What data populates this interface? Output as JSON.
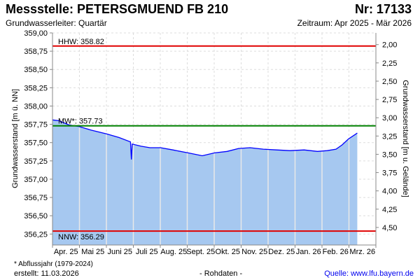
{
  "header": {
    "title": "Messstelle: PETERSGMUEND FB 210",
    "number": "Nr: 17133",
    "aquifer": "Grundwasserleiter: Quartär",
    "period": "Zeitraum: Apr 2025 - Mär 2026"
  },
  "footer": {
    "note": "* Abflussjahr (1979-2024)",
    "created": "erstellt:  11.03.2026",
    "raw": "- Rohdaten -",
    "source": "Quelle: www.lfu.bayern.de"
  },
  "chart_data": {
    "type": "area",
    "title": "Messstelle: PETERSGMUEND FB 210",
    "ylabel": "Grundwasserstand [m ü. NN]",
    "y2label": "Grundwasserstand [m u. Gelände]",
    "ylim": [
      356.1,
      359.0
    ],
    "yticks": [
      "359,00",
      "358,75",
      "358,50",
      "358,25",
      "358,00",
      "357,75",
      "357,50",
      "357,25",
      "357,00",
      "356,75",
      "356,50",
      "356,25"
    ],
    "ytick_values": [
      359.0,
      358.75,
      358.5,
      358.25,
      358.0,
      357.75,
      357.5,
      357.25,
      357.0,
      356.75,
      356.5,
      356.25
    ],
    "ground_level": 360.84,
    "y2ticks": [
      "2,00",
      "2,25",
      "2,50",
      "2,75",
      "3,00",
      "3,25",
      "3,50",
      "3,75",
      "4,00",
      "4,25",
      "4,50"
    ],
    "y2tick_values": [
      2.0,
      2.25,
      2.5,
      2.75,
      3.0,
      3.25,
      3.5,
      3.75,
      4.0,
      4.25,
      4.5
    ],
    "xlim": [
      "2025-04-01",
      "2026-04-01"
    ],
    "months": [
      "Apr. 25",
      "Mai 25",
      "Juni 25",
      "Juli 25",
      "Aug. 25",
      "Sept. 25",
      "Okt. 25",
      "Nov. 25",
      "Dez. 25",
      "Jan. 26",
      "Feb. 26",
      "Mrz. 26"
    ],
    "grid": true,
    "colors": {
      "fill": "#a6c8f0",
      "line": "#0000ff",
      "extreme": "#e00000",
      "mean": "#008000"
    },
    "reference_lines": [
      {
        "label": "HHW: 358.82",
        "value": 358.82,
        "kind": "extreme"
      },
      {
        "label": "MW*: 357.73",
        "value": 357.73,
        "kind": "mean"
      },
      {
        "label": "NNW: 356.29",
        "value": 356.29,
        "kind": "extreme"
      }
    ],
    "series": [
      {
        "name": "Grundwasserstand",
        "points": [
          [
            "2025-04-01",
            357.81
          ],
          [
            "2025-04-08",
            357.8
          ],
          [
            "2025-04-20",
            357.74
          ],
          [
            "2025-05-01",
            357.72
          ],
          [
            "2025-05-15",
            357.67
          ],
          [
            "2025-06-01",
            357.62
          ],
          [
            "2025-06-15",
            357.57
          ],
          [
            "2025-06-28",
            357.51
          ],
          [
            "2025-06-29",
            357.27
          ],
          [
            "2025-06-30",
            357.48
          ],
          [
            "2025-07-10",
            357.45
          ],
          [
            "2025-07-20",
            357.43
          ],
          [
            "2025-08-01",
            357.43
          ],
          [
            "2025-08-15",
            357.4
          ],
          [
            "2025-09-01",
            357.36
          ],
          [
            "2025-09-17",
            357.32
          ],
          [
            "2025-10-01",
            357.36
          ],
          [
            "2025-10-15",
            357.38
          ],
          [
            "2025-10-28",
            357.42
          ],
          [
            "2025-11-10",
            357.43
          ],
          [
            "2025-11-25",
            357.41
          ],
          [
            "2025-12-10",
            357.4
          ],
          [
            "2025-12-25",
            357.39
          ],
          [
            "2026-01-10",
            357.4
          ],
          [
            "2026-01-25",
            357.38
          ],
          [
            "2026-02-05",
            357.39
          ],
          [
            "2026-02-15",
            357.41
          ],
          [
            "2026-02-22",
            357.47
          ],
          [
            "2026-03-01",
            357.55
          ],
          [
            "2026-03-11",
            357.63
          ]
        ]
      }
    ]
  }
}
